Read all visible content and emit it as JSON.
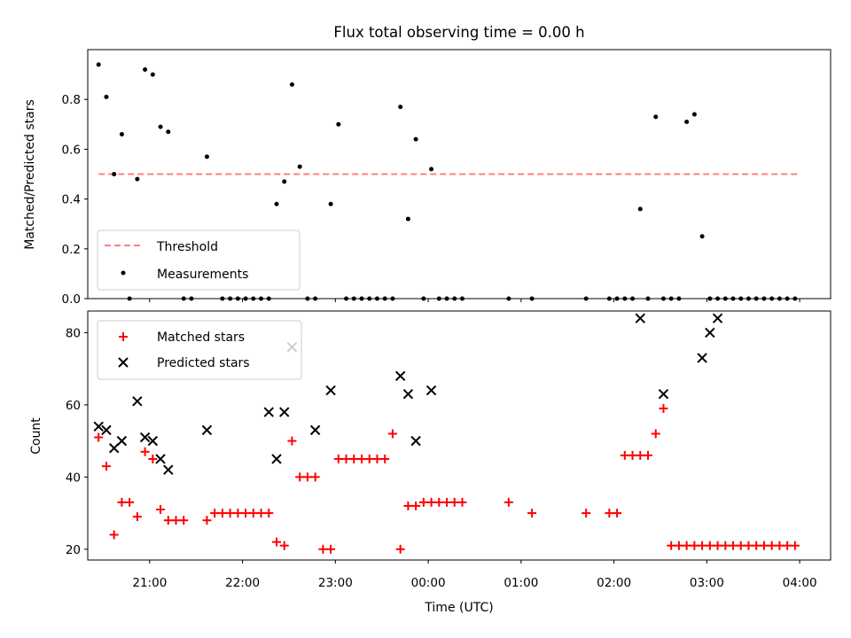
{
  "chart_data": [
    {
      "type": "scatter",
      "title": "Flux total observing time = 0.00 h",
      "xlabel": "",
      "ylabel": "Matched/Predicted stars",
      "xlim": [
        "20:20",
        "04:20"
      ],
      "ylim": [
        0,
        1.0
      ],
      "yticks": [
        "0.0",
        "0.2",
        "0.4",
        "0.6",
        "0.8"
      ],
      "legend_position": "lower-left",
      "series": [
        {
          "name": "Threshold",
          "style": "dashed-line",
          "color": "#ff7f7f",
          "x": [
            "20:27",
            "04:00"
          ],
          "y": [
            0.5,
            0.5
          ]
        },
        {
          "name": "Measurements",
          "style": "dot",
          "color": "#000000",
          "x": [
            "20:27",
            "20:32",
            "20:37",
            "20:42",
            "20:47",
            "20:52",
            "20:57",
            "21:02",
            "21:07",
            "21:12",
            "21:22",
            "21:27",
            "21:37",
            "21:47",
            "21:52",
            "21:57",
            "22:02",
            "22:07",
            "22:12",
            "22:17",
            "22:22",
            "22:27",
            "22:32",
            "22:37",
            "22:42",
            "22:47",
            "22:57",
            "23:02",
            "23:07",
            "23:12",
            "23:17",
            "23:22",
            "23:27",
            "23:32",
            "23:37",
            "23:42",
            "23:47",
            "23:52",
            "23:57",
            "00:02",
            "00:07",
            "00:12",
            "00:17",
            "00:22",
            "00:52",
            "01:07",
            "01:42",
            "01:57",
            "02:02",
            "02:07",
            "02:12",
            "02:17",
            "02:22",
            "02:27",
            "02:32",
            "02:37",
            "02:42",
            "02:47",
            "02:52",
            "02:57",
            "03:02",
            "03:07",
            "03:12",
            "03:17",
            "03:22",
            "03:27",
            "03:32",
            "03:37",
            "03:42",
            "03:47",
            "03:52",
            "03:57"
          ],
          "y": [
            0.94,
            0.81,
            0.5,
            0.66,
            0.0,
            0.48,
            0.92,
            0.9,
            0.69,
            0.67,
            0.0,
            0.0,
            0.57,
            0.0,
            0.0,
            0.0,
            0.0,
            0.0,
            0.0,
            0.0,
            0.38,
            0.47,
            0.86,
            0.53,
            0.0,
            0.0,
            0.38,
            0.7,
            0.0,
            0.0,
            0.0,
            0.0,
            0.0,
            0.0,
            0.0,
            0.77,
            0.32,
            0.64,
            0.0,
            0.52,
            0.0,
            0.0,
            0.0,
            0.0,
            0.0,
            0.0,
            0.0,
            0.0,
            0.0,
            0.0,
            0.0,
            0.36,
            0.0,
            0.73,
            0.0,
            0.0,
            0.0,
            0.71,
            0.74,
            0.25,
            0.0,
            0.0,
            0.0,
            0.0,
            0.0,
            0.0,
            0.0,
            0.0,
            0.0,
            0.0,
            0.0,
            0.0
          ]
        }
      ]
    },
    {
      "type": "scatter",
      "title": "",
      "xlabel": "Time (UTC)",
      "ylabel": "Count",
      "xlim": [
        "20:20",
        "04:20"
      ],
      "ylim": [
        17,
        86
      ],
      "yticks": [
        "20",
        "40",
        "60",
        "80"
      ],
      "xticks": [
        "21:00",
        "22:00",
        "23:00",
        "00:00",
        "01:00",
        "02:00",
        "03:00",
        "04:00"
      ],
      "legend_position": "top-left",
      "series": [
        {
          "name": "Matched stars",
          "marker": "plus",
          "color": "#ff0000",
          "x": [
            "20:27",
            "20:32",
            "20:37",
            "20:42",
            "20:47",
            "20:52",
            "20:57",
            "21:02",
            "21:07",
            "21:12",
            "21:17",
            "21:22",
            "21:37",
            "21:42",
            "21:47",
            "21:52",
            "21:57",
            "22:02",
            "22:07",
            "22:12",
            "22:17",
            "22:22",
            "22:27",
            "22:32",
            "22:37",
            "22:42",
            "22:47",
            "22:52",
            "22:57",
            "23:02",
            "23:07",
            "23:12",
            "23:17",
            "23:22",
            "23:27",
            "23:32",
            "23:37",
            "23:42",
            "23:47",
            "23:52",
            "23:57",
            "00:02",
            "00:07",
            "00:12",
            "00:17",
            "00:22",
            "00:52",
            "01:07",
            "01:42",
            "01:57",
            "02:02",
            "02:07",
            "02:12",
            "02:17",
            "02:22",
            "02:27",
            "02:32",
            "02:37",
            "02:42",
            "02:47",
            "02:52",
            "02:57",
            "03:02",
            "03:07",
            "03:12",
            "03:17",
            "03:22",
            "03:27",
            "03:32",
            "03:37",
            "03:42",
            "03:47",
            "03:52",
            "03:57"
          ],
          "y": [
            51,
            43,
            24,
            33,
            33,
            29,
            47,
            45,
            31,
            28,
            28,
            28,
            28,
            30,
            30,
            30,
            30,
            30,
            30,
            30,
            30,
            22,
            21,
            50,
            40,
            40,
            40,
            20,
            20,
            45,
            45,
            45,
            45,
            45,
            45,
            45,
            52,
            20,
            32,
            32,
            33,
            33,
            33,
            33,
            33,
            33,
            33,
            30,
            30,
            30,
            30,
            46,
            46,
            46,
            46,
            52,
            59,
            21,
            21,
            21,
            21,
            21,
            21,
            21,
            21,
            21,
            21,
            21,
            21,
            21,
            21,
            21,
            21,
            21
          ]
        },
        {
          "name": "Predicted stars",
          "marker": "x",
          "color": "#000000",
          "x": [
            "20:27",
            "20:32",
            "20:37",
            "20:42",
            "20:52",
            "20:57",
            "21:02",
            "21:07",
            "21:12",
            "21:37",
            "22:17",
            "22:22",
            "22:27",
            "22:32",
            "22:47",
            "22:57",
            "23:42",
            "23:47",
            "23:52",
            "00:02",
            "02:17",
            "02:32",
            "02:57",
            "03:02",
            "03:07"
          ],
          "y": [
            54,
            53,
            48,
            50,
            61,
            51,
            50,
            45,
            42,
            53,
            58,
            45,
            58,
            76,
            53,
            64,
            68,
            63,
            50,
            64,
            84,
            63,
            73,
            80,
            84
          ]
        }
      ]
    }
  ]
}
